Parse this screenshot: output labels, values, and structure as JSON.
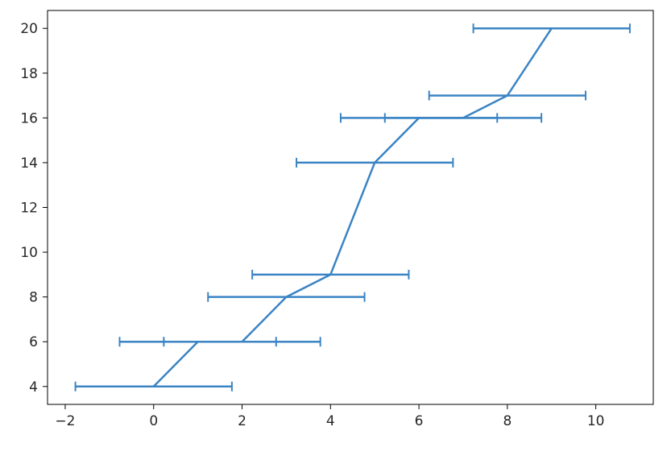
{
  "chart_data": {
    "type": "line",
    "title": "",
    "xlabel": "",
    "ylabel": "",
    "xlim": [
      -2.4,
      11.3
    ],
    "ylim": [
      3.2,
      20.8
    ],
    "x_ticks": [
      -2,
      0,
      2,
      4,
      6,
      8,
      10
    ],
    "y_ticks": [
      4,
      6,
      8,
      10,
      12,
      14,
      16,
      18,
      20
    ],
    "x_tick_labels": [
      "−2",
      "0",
      "2",
      "4",
      "6",
      "8",
      "10"
    ],
    "y_tick_labels": [
      "4",
      "6",
      "8",
      "10",
      "12",
      "14",
      "16",
      "18",
      "20"
    ],
    "grid": false,
    "legend": "none",
    "series": [
      {
        "color": "#3b84c4",
        "x": [
          0,
          1,
          2,
          3,
          4,
          5,
          6,
          7,
          8,
          9
        ],
        "y": [
          4,
          6,
          6,
          8,
          9,
          14,
          16,
          16,
          17,
          20
        ],
        "xerr": [
          1.77,
          1.77,
          1.77,
          1.77,
          1.77,
          1.77,
          1.77,
          1.77,
          1.77,
          1.77
        ]
      }
    ]
  }
}
